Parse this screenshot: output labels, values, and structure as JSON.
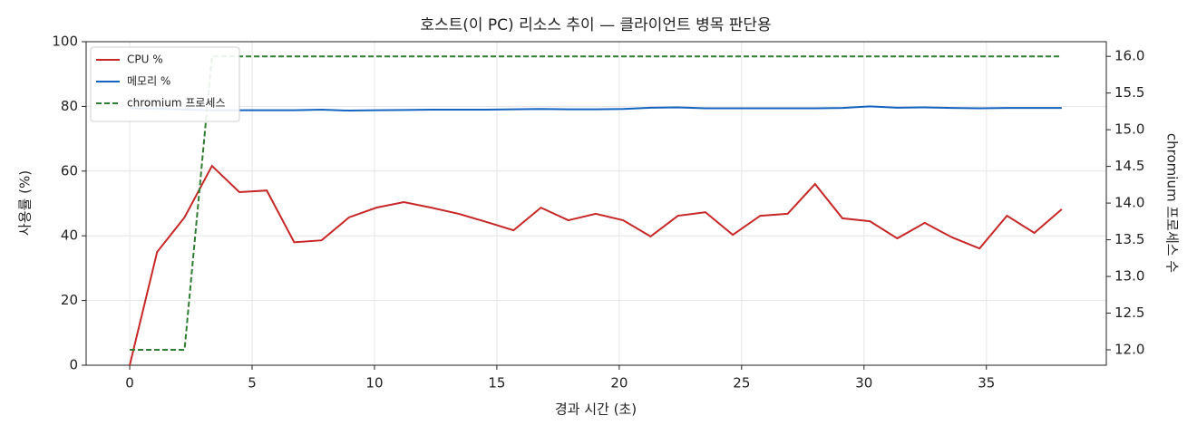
{
  "chart_data": {
    "type": "line",
    "title": "호스트(이 PC) 리소스 추이 — 클라이언트 병목 판단용",
    "x_label": "경과 시간 (초)",
    "y_label": "사용률 (%)",
    "y2_label": "chromium 프로세스 수",
    "x": [
      0,
      1.12,
      2.24,
      3.36,
      4.48,
      5.6,
      6.72,
      7.84,
      8.96,
      10.08,
      11.2,
      12.32,
      13.44,
      14.56,
      15.68,
      16.8,
      17.92,
      19.04,
      20.16,
      21.28,
      22.4,
      23.52,
      24.64,
      25.76,
      26.88,
      28,
      29.12,
      30.24,
      31.36,
      32.48,
      33.6,
      34.72,
      35.84,
      36.96,
      38.08
    ],
    "series": [
      {
        "name": "CPU %",
        "color": "#c62828",
        "linestyle": "solid",
        "values": [
          0,
          35,
          45.7,
          61.6,
          53.5,
          54,
          38,
          38.6,
          45.7,
          48.7,
          50.4,
          48.7,
          46.8,
          44.3,
          41.7,
          48.7,
          44.8,
          46.8,
          44.8,
          39.8,
          46.2,
          47.3,
          40.3,
          46.2,
          46.8,
          56,
          45.4,
          44.5,
          39.2,
          44,
          39.5,
          36.1,
          46.2,
          40.9,
          48.2
        ]
      },
      {
        "name": "메모리 %",
        "color": "#1565c0",
        "linestyle": "solid",
        "values": [
          79.4,
          79.3,
          79.0,
          78.8,
          78.8,
          78.8,
          78.8,
          79.0,
          78.7,
          78.8,
          78.9,
          79.0,
          79.0,
          79.0,
          79.1,
          79.2,
          79.1,
          79.1,
          79.2,
          79.6,
          79.7,
          79.4,
          79.4,
          79.4,
          79.4,
          79.4,
          79.5,
          80.0,
          79.6,
          79.7,
          79.5,
          79.4,
          79.5,
          79.5,
          79.5
        ]
      },
      {
        "name": "chromium 프로세스",
        "color": "#2e7d32",
        "linestyle": "dashed",
        "axis": "y2",
        "values": [
          12,
          12,
          12,
          16,
          16,
          16,
          16,
          16,
          16,
          16,
          16,
          16,
          16,
          16,
          16,
          16,
          16,
          16,
          16,
          16,
          16,
          16,
          16,
          16,
          16,
          16,
          16,
          16,
          16,
          16,
          16,
          16,
          16,
          16,
          16
        ]
      }
    ],
    "xlim": [
      -1.78,
      39.9
    ],
    "xticks": [
      0,
      5,
      10,
      15,
      20,
      25,
      30,
      35
    ],
    "ylim": [
      0,
      100
    ],
    "yticks": [
      0,
      20,
      40,
      60,
      80,
      100
    ],
    "y2lim": [
      11.79,
      16.2
    ],
    "y2ticks": [
      {
        "value": 12,
        "label": "12.0"
      },
      {
        "value": 12.5,
        "label": "12.5"
      },
      {
        "value": 13,
        "label": "13.0"
      },
      {
        "value": 13.5,
        "label": "13.5"
      },
      {
        "value": 14,
        "label": "14.0"
      },
      {
        "value": 14.5,
        "label": "14.5"
      },
      {
        "value": 15,
        "label": "15.0"
      },
      {
        "value": 15.5,
        "label": "15.5"
      },
      {
        "value": 16,
        "label": "16.0"
      }
    ],
    "grid": true,
    "legend": "upper-left"
  }
}
